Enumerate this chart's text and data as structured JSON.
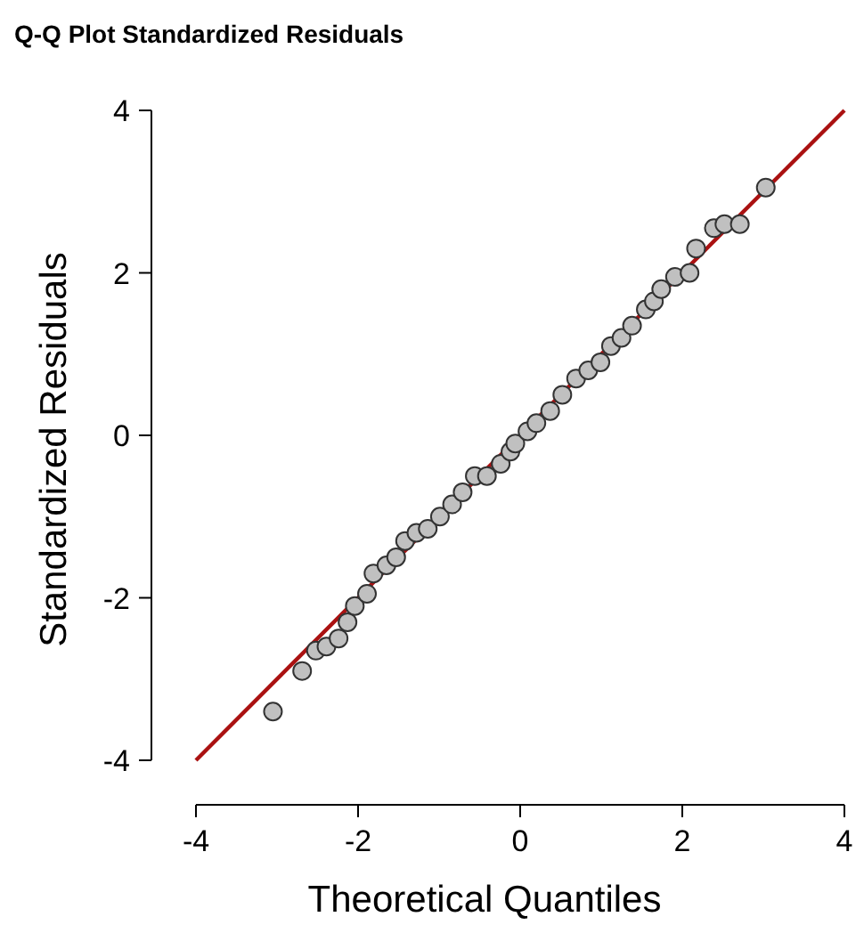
{
  "chart_data": {
    "type": "scatter",
    "title": "Q-Q Plot Standardized Residuals",
    "xlabel": "Theoretical Quantiles",
    "ylabel": "Standardized Residuals",
    "xlim": [
      -4,
      4
    ],
    "ylim": [
      -4,
      4
    ],
    "xticks": [
      -4,
      -2,
      0,
      2,
      4
    ],
    "yticks": [
      -4,
      -2,
      0,
      2,
      4
    ],
    "grid": false,
    "series": [
      {
        "color": "#c0c0c0",
        "marker": "circle",
        "x": [
          -3.05,
          -2.69,
          -2.52,
          -2.39,
          -2.24,
          -2.13,
          -2.04,
          -1.89,
          -1.81,
          -1.65,
          -1.53,
          -1.42,
          -1.28,
          -1.14,
          -0.99,
          -0.84,
          -0.71,
          -0.56,
          -0.41,
          -0.24,
          -0.12,
          -0.06,
          0.09,
          0.2,
          0.37,
          0.52,
          0.69,
          0.84,
          0.99,
          1.12,
          1.25,
          1.38,
          1.55,
          1.65,
          1.74,
          1.91,
          2.09,
          2.17,
          2.39,
          2.52,
          2.71,
          3.03
        ],
        "values": [
          -3.4,
          -2.9,
          -2.65,
          -2.6,
          -2.5,
          -2.3,
          -2.1,
          -1.95,
          -1.7,
          -1.6,
          -1.5,
          -1.3,
          -1.2,
          -1.15,
          -1,
          -0.85,
          -0.7,
          -0.5,
          -0.5,
          -0.35,
          -0.2,
          -0.1,
          0.05,
          0.15,
          0.3,
          0.5,
          0.7,
          0.8,
          0.9,
          1.1,
          1.2,
          1.35,
          1.55,
          1.65,
          1.8,
          1.95,
          2,
          2.3,
          2.55,
          2.6,
          2.6,
          3.05
        ]
      },
      {
        "type": "line",
        "color": "#aa1111",
        "x": [
          -4,
          4
        ],
        "values": [
          -4,
          4
        ]
      }
    ]
  }
}
